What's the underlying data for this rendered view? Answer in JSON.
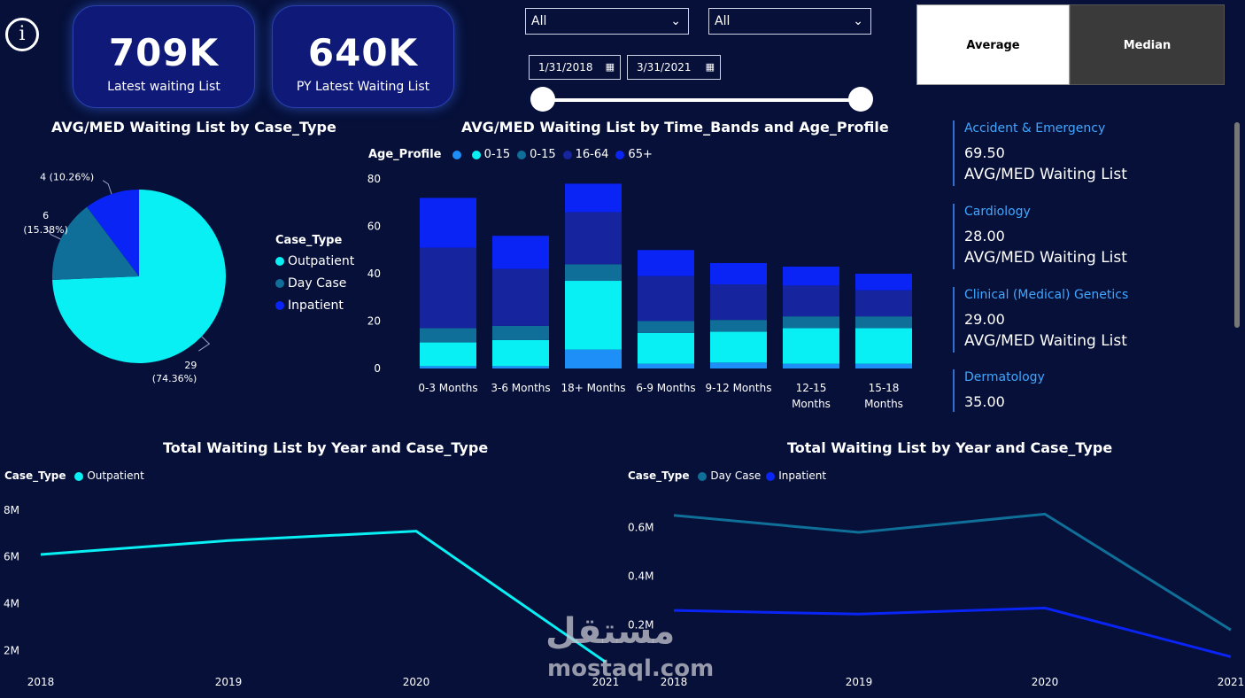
{
  "info_icon": "info-icon",
  "kpis": [
    {
      "value": "709K",
      "label": "Latest waiting List"
    },
    {
      "value": "640K",
      "label": "PY Latest Waiting List"
    }
  ],
  "filters": {
    "dropdown1": "All",
    "dropdown2": "All",
    "date_start": "1/31/2018",
    "date_end": "3/31/2021"
  },
  "toggle": {
    "average": "Average",
    "median": "Median"
  },
  "cards": [
    {
      "name": "Accident & Emergency",
      "value": "69.50",
      "sub": "AVG/MED Waiting List"
    },
    {
      "name": "Cardiology",
      "value": "28.00",
      "sub": "AVG/MED Waiting List"
    },
    {
      "name": "Clinical (Medical) Genetics",
      "value": "29.00",
      "sub": "AVG/MED Waiting List"
    },
    {
      "name": "Dermatology",
      "value": "35.00"
    }
  ],
  "watermark": {
    "arabic": "مستقل",
    "latin": "mostaql.com"
  },
  "colors": {
    "bg": "#061038",
    "cyan": "#08f0f4",
    "teal": "#0f6f99",
    "blue": "#0a24f5",
    "navy": "#16249e",
    "mid": "#1d8ff6"
  },
  "chart_data": [
    {
      "type": "pie",
      "title": "AVG/MED Waiting List by Case_Type",
      "legend_title": "Case_Type",
      "categories": [
        "Outpatient",
        "Day Case",
        "Inpatient"
      ],
      "values": [
        29,
        6,
        4
      ],
      "labels": [
        [
          "29",
          "(74.36%)"
        ],
        [
          "6",
          "(15.38%)"
        ],
        [
          "4 (10.26%)"
        ]
      ],
      "colors": [
        "#08f0f4",
        "#0f6f99",
        "#0a24f5"
      ],
      "legend_position": "right"
    },
    {
      "type": "bar",
      "stacked": true,
      "title": "AVG/MED Waiting List by Time_Bands and Age_Profile",
      "legend_title": "Age_Profile",
      "categories": [
        [
          "0-3 Months"
        ],
        [
          "3-6 Months"
        ],
        [
          "18+ Months"
        ],
        [
          "6-9 Months"
        ],
        [
          "9-12 Months"
        ],
        [
          "12-15",
          "Months"
        ],
        [
          "15-18",
          "Months"
        ]
      ],
      "series": [
        {
          "name": "",
          "color": "#1d8ff6",
          "values": [
            1,
            1,
            8,
            2,
            2.5,
            2,
            2
          ]
        },
        {
          "name": "0-15",
          "color": "#08f0f4",
          "values": [
            10,
            11,
            29,
            13,
            13,
            15,
            15
          ]
        },
        {
          "name": "0-15",
          "color": "#0f6f99",
          "values": [
            6,
            6,
            7,
            5,
            5,
            5,
            5
          ]
        },
        {
          "name": "16-64",
          "color": "#16249e",
          "values": [
            34,
            24,
            22,
            19,
            15,
            13,
            11
          ]
        },
        {
          "name": "65+",
          "color": "#0a24f5",
          "values": [
            21,
            14,
            12,
            11,
            9,
            8,
            7
          ]
        }
      ],
      "yticks": [
        0,
        20,
        40,
        60,
        80
      ],
      "ylim": [
        0,
        80
      ]
    },
    {
      "type": "line",
      "title": "Total Waiting List by Year and Case_Type",
      "legend_title": "Case_Type",
      "x": [
        "2018",
        "2019",
        "2020",
        "2021"
      ],
      "series": [
        {
          "name": "Outpatient",
          "color": "#08f0f4",
          "values": [
            6.1,
            6.7,
            7.1,
            1.5
          ]
        }
      ],
      "yticks": [
        {
          "v": 2,
          "label": "2M"
        },
        {
          "v": 4,
          "label": "4M"
        },
        {
          "v": 6,
          "label": "6M"
        },
        {
          "v": 8,
          "label": "8M"
        }
      ],
      "ylim": [
        1.1,
        8.3
      ]
    },
    {
      "type": "line",
      "title": "Total Waiting List by Year and Case_Type",
      "legend_title": "Case_Type",
      "x": [
        "2018",
        "2019",
        "2020",
        "2021"
      ],
      "series": [
        {
          "name": "Day Case",
          "color": "#0f6f99",
          "values": [
            0.65,
            0.58,
            0.655,
            0.18
          ]
        },
        {
          "name": "Inpatient",
          "color": "#0a24f5",
          "values": [
            0.26,
            0.245,
            0.27,
            0.07
          ]
        }
      ],
      "yticks": [
        {
          "v": 0.2,
          "label": "0.2M"
        },
        {
          "v": 0.4,
          "label": "0.4M"
        },
        {
          "v": 0.6,
          "label": "0.6M"
        }
      ],
      "ylim": [
        0.01,
        0.7
      ]
    }
  ]
}
